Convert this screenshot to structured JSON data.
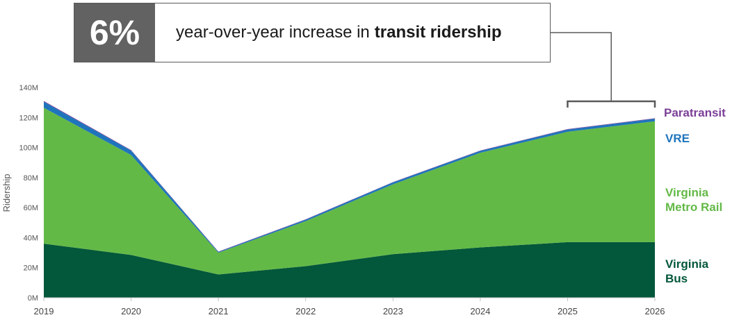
{
  "callout": {
    "stat": "6%",
    "text_prefix": "year-over-year increase in",
    "text_bold": "transit ridership"
  },
  "chart_data": {
    "type": "area",
    "stacked": true,
    "x": [
      "2019",
      "2020",
      "2021",
      "2022",
      "2023",
      "2024",
      "2025",
      "2026"
    ],
    "ylabel": "Ridership",
    "ylim": [
      0,
      140000000
    ],
    "yticks": [
      {
        "value": 0,
        "label": "0M"
      },
      {
        "value": 20000000,
        "label": "20M"
      },
      {
        "value": 40000000,
        "label": "40M"
      },
      {
        "value": 60000000,
        "label": "60M"
      },
      {
        "value": 80000000,
        "label": "80M"
      },
      {
        "value": 100000000,
        "label": "100M"
      },
      {
        "value": 120000000,
        "label": "120M"
      },
      {
        "value": 140000000,
        "label": "140M"
      }
    ],
    "series": [
      {
        "name": "Virginia Bus",
        "color": "#03573A",
        "values": [
          36000000,
          28500000,
          15500000,
          21000000,
          29000000,
          33500000,
          37000000,
          37000000
        ]
      },
      {
        "name": "Virginia Metro Rail",
        "color": "#63B946",
        "values": [
          90500000,
          66500000,
          14500000,
          30000000,
          46500000,
          63000000,
          73500000,
          80500000
        ]
      },
      {
        "name": "VRE",
        "color": "#1F75BC",
        "values": [
          4000000,
          3000000,
          500000,
          1000000,
          1300000,
          1300000,
          1500000,
          1700000
        ]
      },
      {
        "name": "Paratransit",
        "color": "#7B3F98",
        "values": [
          500000,
          300000,
          200000,
          200000,
          200000,
          200000,
          300000,
          300000
        ]
      }
    ],
    "bracket": {
      "from": "2025",
      "to": "2026"
    },
    "grid": false,
    "legend": "right, labels beside series"
  }
}
